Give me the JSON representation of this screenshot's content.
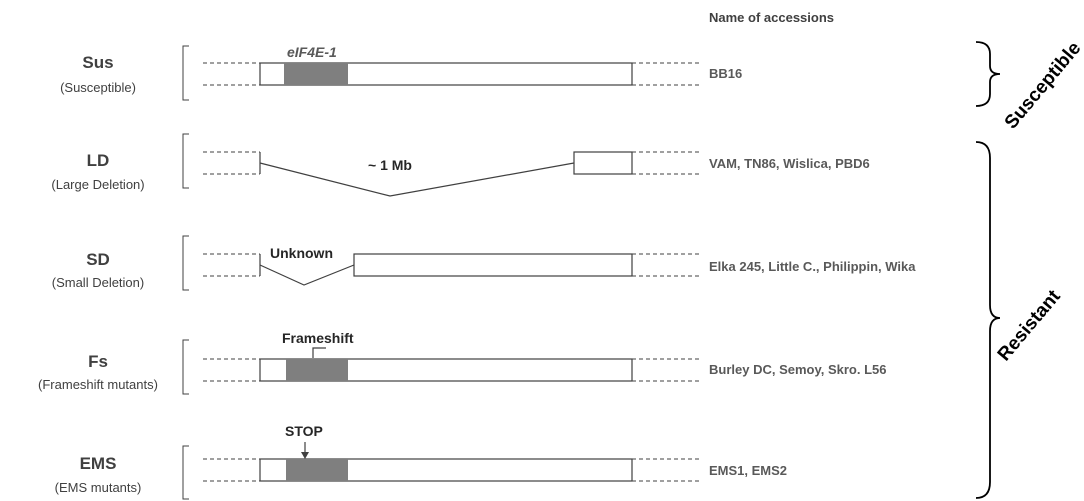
{
  "header": {
    "accessions_title": "Name of accessions"
  },
  "gene_label": "eIF4E-1",
  "rows": [
    {
      "code": "Sus",
      "desc": "(Susceptible)",
      "accessions": "BB16"
    },
    {
      "code": "LD",
      "desc": "(Large Deletion)",
      "accessions": "VAM, TN86, Wislica, PBD6",
      "annotation": "~ 1 Mb"
    },
    {
      "code": "SD",
      "desc": "(Small Deletion)",
      "accessions": "Elka 245, Little C., Philippin, Wika",
      "annotation": "Unknown"
    },
    {
      "code": "Fs",
      "desc": "(Frameshift mutants)",
      "accessions": "Burley DC, Semoy, Skro. L56",
      "annotation": "Frameshift"
    },
    {
      "code": "EMS",
      "desc": "(EMS mutants)",
      "accessions": "EMS1, EMS2",
      "annotation": "STOP"
    }
  ],
  "groups": {
    "susceptible": "Susceptible",
    "resistant": "Resistant"
  },
  "colors": {
    "exon": "#7f7f7f",
    "line": "#404040",
    "text": "#404040",
    "accessions": "#595959"
  }
}
